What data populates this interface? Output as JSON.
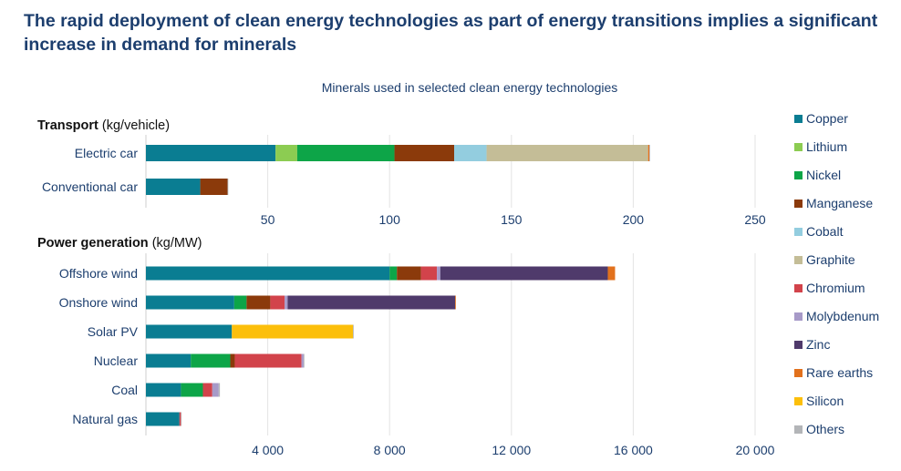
{
  "title": "The rapid deployment of clean energy technologies as part of energy transitions implies a significant increase in demand for minerals",
  "chart_data": {
    "type": "bar",
    "subtitle": "Minerals used in selected clean energy technologies",
    "legend_position": "right",
    "grid": true,
    "series": [
      {
        "name": "Copper",
        "color": "#0a7d92"
      },
      {
        "name": "Lithium",
        "color": "#8ccc52"
      },
      {
        "name": "Nickel",
        "color": "#0da548"
      },
      {
        "name": "Manganese",
        "color": "#8b3a0b"
      },
      {
        "name": "Cobalt",
        "color": "#93cddf"
      },
      {
        "name": "Graphite",
        "color": "#c4bd97"
      },
      {
        "name": "Chromium",
        "color": "#d2434b"
      },
      {
        "name": "Molybdenum",
        "color": "#a79ac8"
      },
      {
        "name": "Zinc",
        "color": "#4f3a6b"
      },
      {
        "name": "Rare earths",
        "color": "#e2711d"
      },
      {
        "name": "Silicon",
        "color": "#fcbf0b"
      },
      {
        "name": "Others",
        "color": "#b3b5b8"
      }
    ],
    "panels": [
      {
        "heading": "Transport",
        "unit": "(kg/vehicle)",
        "xlim": [
          0,
          250
        ],
        "xticks": [
          50,
          100,
          150,
          200,
          250
        ],
        "xtick_labels": [
          "50",
          "100",
          "150",
          "200",
          "250"
        ],
        "categories": [
          {
            "label": "Electric car",
            "values": {
              "Copper": 53.2,
              "Lithium": 8.9,
              "Nickel": 39.9,
              "Manganese": 24.5,
              "Cobalt": 13.3,
              "Graphite": 66.3,
              "Rare earths": 0.5,
              "Others": 0.3
            }
          },
          {
            "label": "Conventional car",
            "values": {
              "Copper": 22.3,
              "Manganese": 11.2,
              "Others": 0.3
            }
          }
        ]
      },
      {
        "heading": "Power generation",
        "unit": "(kg/MW)",
        "xlim": [
          0,
          20000
        ],
        "xticks": [
          4000,
          8000,
          12000,
          16000,
          20000
        ],
        "xtick_labels": [
          "4 000",
          "8 000",
          "12 000",
          "16 000",
          "20 000"
        ],
        "categories": [
          {
            "label": "Offshore wind",
            "values": {
              "Copper": 8000,
              "Nickel": 240,
              "Manganese": 790,
              "Chromium": 525,
              "Molybdenum": 109,
              "Zinc": 5500,
              "Rare earths": 239
            }
          },
          {
            "label": "Onshore wind",
            "values": {
              "Copper": 2900,
              "Nickel": 404,
              "Manganese": 780,
              "Chromium": 470,
              "Molybdenum": 99,
              "Zinc": 5500,
              "Rare earths": 14
            }
          },
          {
            "label": "Solar PV",
            "values": {
              "Copper": 2822,
              "Silicon": 3978,
              "Others": 20
            }
          },
          {
            "label": "Nuclear",
            "values": {
              "Copper": 1473,
              "Nickel": 1297,
              "Manganese": 148,
              "Chromium": 2190,
              "Molybdenum": 70,
              "Others": 20
            }
          },
          {
            "label": "Coal",
            "values": {
              "Copper": 1150,
              "Nickel": 721,
              "Molybdenum": 210,
              "Chromium": 308,
              "Others": 40
            }
          },
          {
            "label": "Natural gas",
            "values": {
              "Copper": 1100,
              "Chromium": 48,
              "Others": 12
            }
          }
        ]
      }
    ]
  }
}
